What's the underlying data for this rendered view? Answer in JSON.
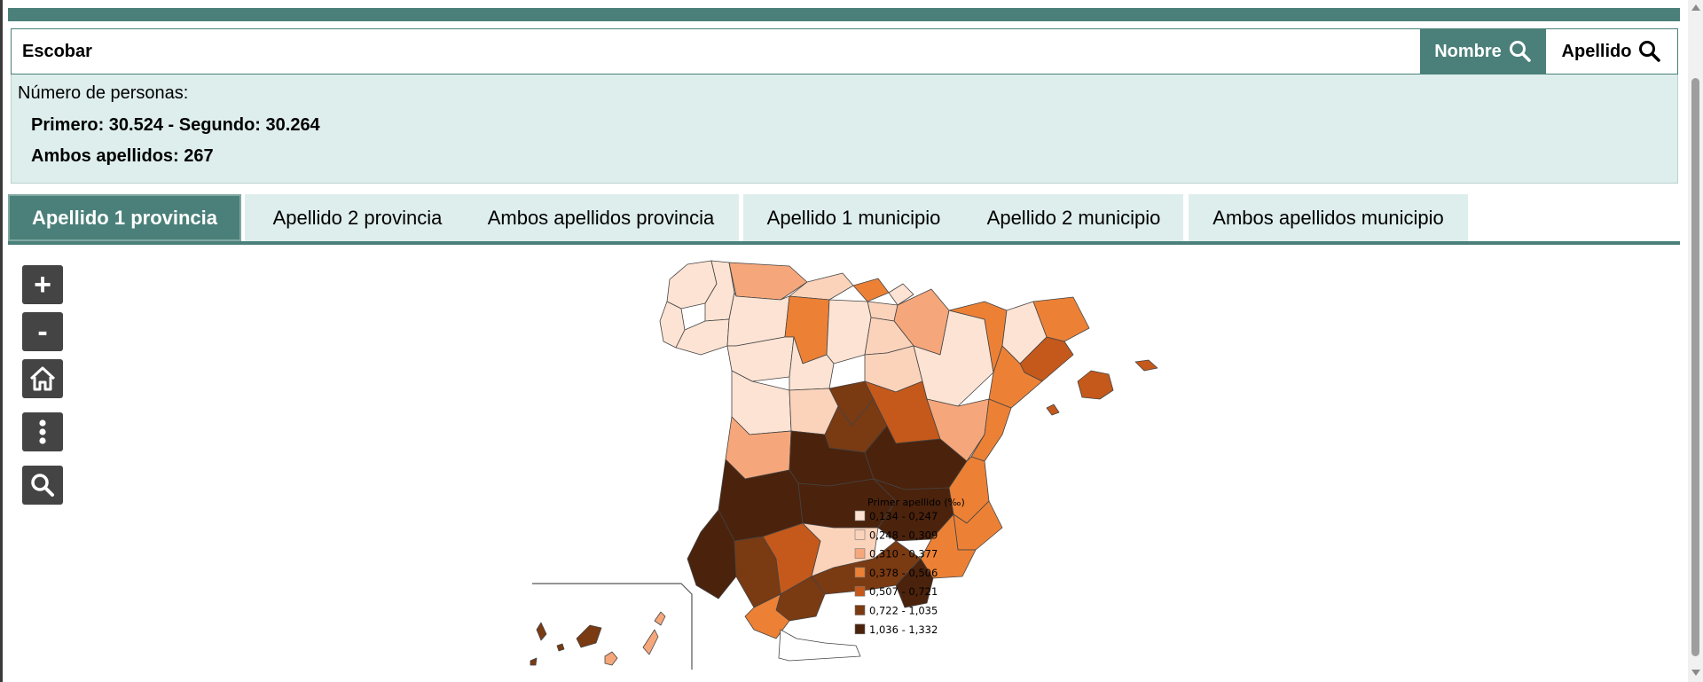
{
  "search": {
    "value": "Escobar",
    "nombre_label": "Nombre",
    "apellido_label": "Apellido"
  },
  "info": {
    "title": "Número de personas:",
    "line1": "Primero: 30.524 - Segundo: 30.264",
    "line2": "Ambos apellidos: 267"
  },
  "tabs": [
    {
      "label": "Apellido 1 provincia",
      "active": true
    },
    {
      "label": "Apellido 2 provincia",
      "active": false
    },
    {
      "label": "Ambos apellidos provincia",
      "active": false
    },
    {
      "label": "Apellido 1 municipio",
      "active": false
    },
    {
      "label": "Apellido 2 municipio",
      "active": false
    },
    {
      "label": "Ambos apellidos municipio",
      "active": false
    }
  ],
  "map_controls": {
    "zoom_in": "+",
    "zoom_out": "-",
    "icons": [
      "plus-icon",
      "minus-icon",
      "home-icon",
      "more-vertical-icon",
      "search-icon"
    ]
  },
  "legend": {
    "title": "Primer apellido (‰)",
    "classes": [
      {
        "label": "0,134 - 0,247",
        "color": "#fde3d3"
      },
      {
        "label": "0,248 - 0,309",
        "color": "#fbd3bb"
      },
      {
        "label": "0,310 - 0,377",
        "color": "#f5a77b"
      },
      {
        "label": "0,378 - 0,506",
        "color": "#ec8136"
      },
      {
        "label": "0,507 - 0,721",
        "color": "#c4591b"
      },
      {
        "label": "0,722 - 1,035",
        "color": "#7a3a12"
      },
      {
        "label": "1,036 - 1,332",
        "color": "#4b220c"
      }
    ]
  },
  "colors": {
    "accent": "#4a8079",
    "panel": "#deeeed",
    "control": "#444444"
  }
}
